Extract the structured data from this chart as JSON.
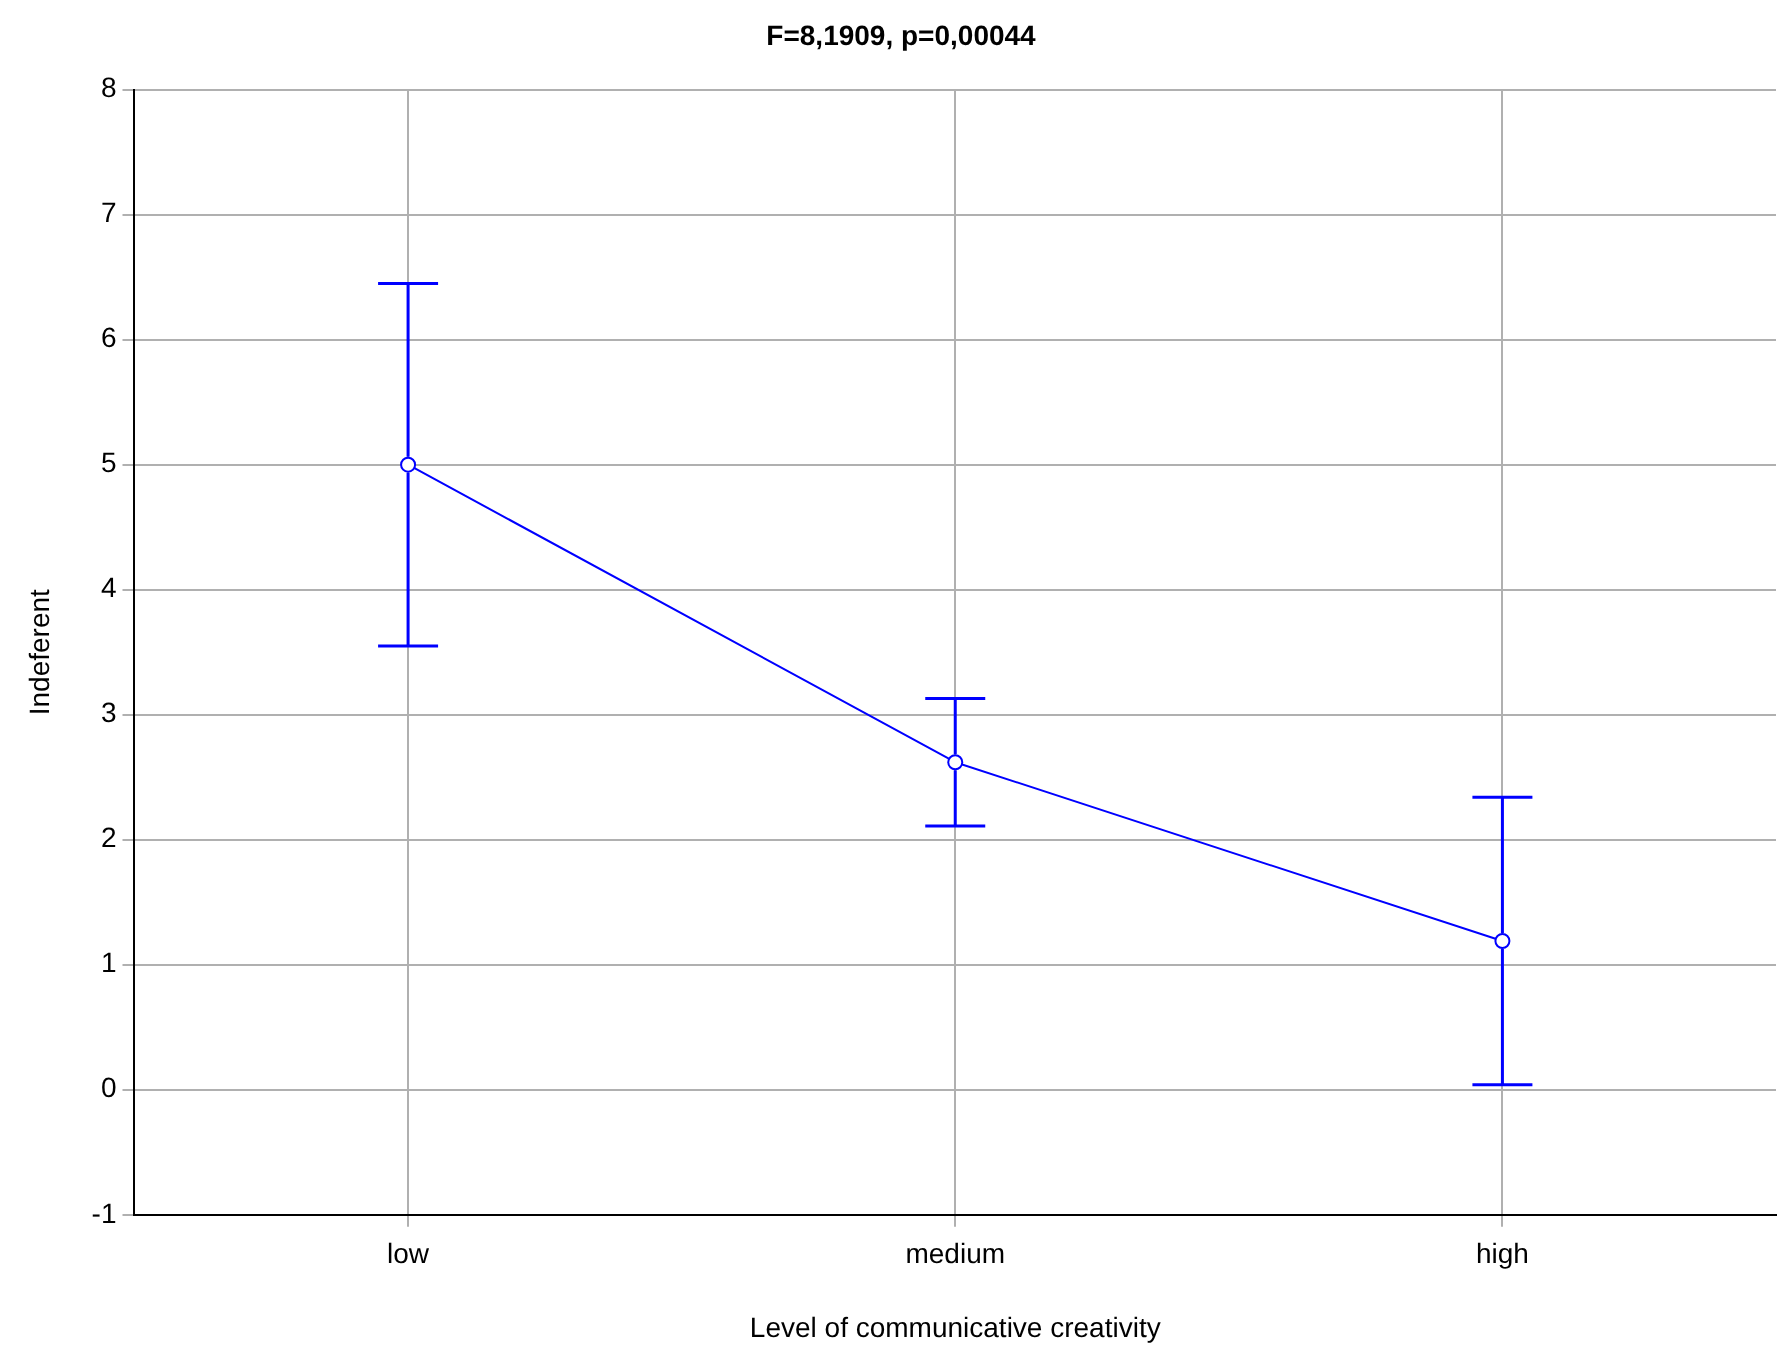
{
  "chart_data": {
    "type": "line",
    "title": "F=8,1909, p=0,00044",
    "xlabel": "Level of communicative creativity",
    "ylabel": "Indeferent",
    "categories": [
      "low",
      "medium",
      "high"
    ],
    "series": [
      {
        "color": "#0000ff",
        "values": [
          5.0,
          2.62,
          1.19
        ],
        "errors": [
          1.45,
          0.51,
          1.15
        ]
      }
    ],
    "ylim": [
      -1,
      8
    ],
    "yticks": [
      -1,
      0,
      1,
      2,
      3,
      4,
      5,
      6,
      7,
      8
    ],
    "grid": true,
    "legend": false,
    "marker": "circle",
    "line_style": "solid"
  }
}
